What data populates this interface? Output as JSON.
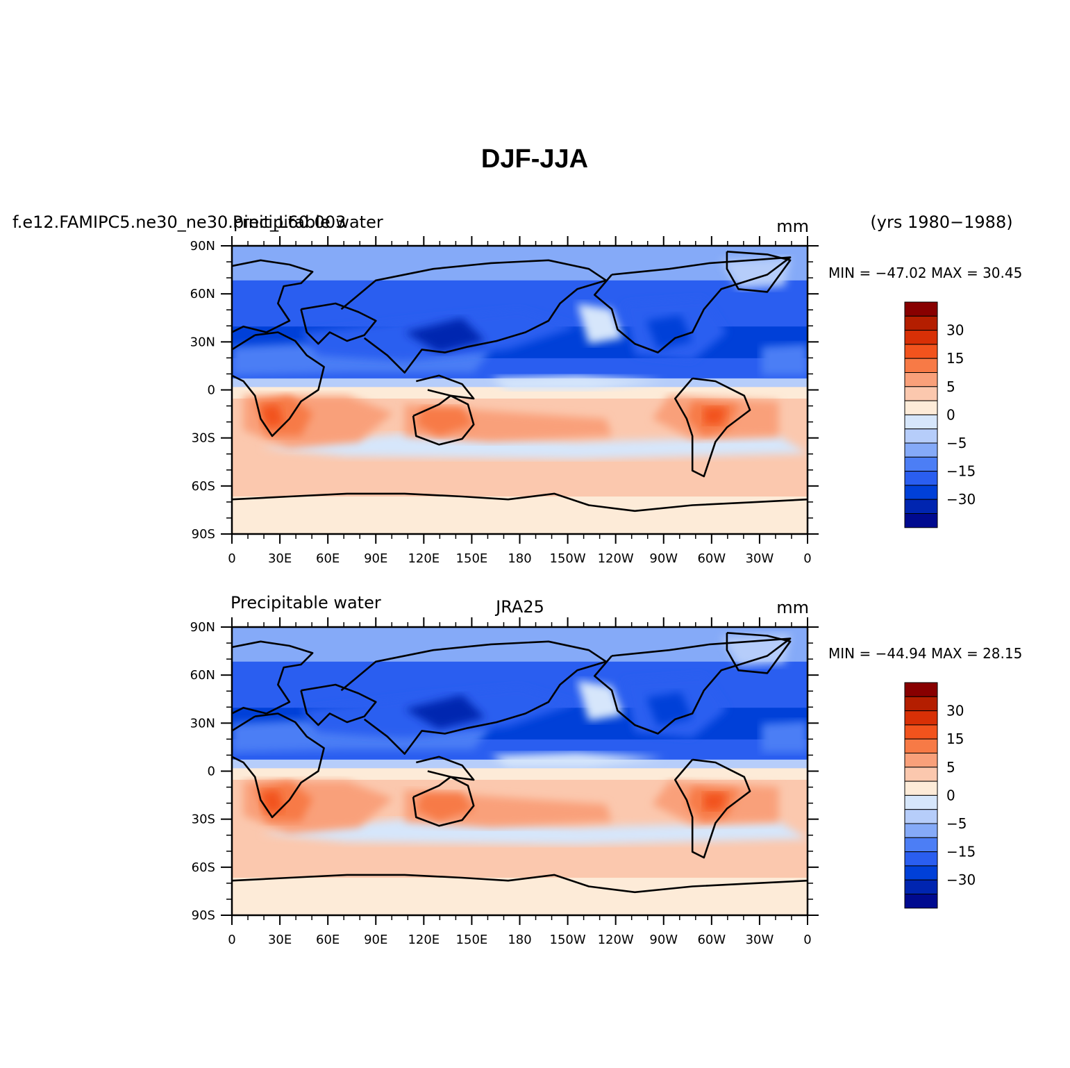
{
  "figure": {
    "title": "DJF-JJA",
    "years": "(yrs 1980−1988)"
  },
  "colors": {
    "scale": [
      "#000a8f",
      "#0025b0",
      "#0040d8",
      "#2a5ef0",
      "#4c7ef5",
      "#85aaf8",
      "#b6cdfa",
      "#d6e6fb",
      "#fdebd8",
      "#fbc8ae",
      "#f9a07a",
      "#f77a46",
      "#f2531d",
      "#d83006",
      "#b41e00",
      "#880000"
    ],
    "land_outline": "#000000"
  },
  "panels": [
    {
      "left_label": "f.e12.FAMIPC5.ne30_ne30.pinit_L60.003",
      "center_label": "Precipitable water",
      "units": "mm",
      "min_max": "MIN = −47.02  MAX =   30.45",
      "variant": "model"
    },
    {
      "left_label": "Precipitable water",
      "center_label": "JRA25",
      "units": "mm",
      "min_max": "MIN = −44.94  MAX =   28.15",
      "variant": "obs"
    }
  ],
  "axes": {
    "lat_ticks": [
      "90N",
      "60N",
      "30N",
      "0",
      "30S",
      "60S",
      "90S"
    ],
    "lon_ticks": [
      "0",
      "30E",
      "60E",
      "90E",
      "120E",
      "150E",
      "180",
      "150W",
      "120W",
      "90W",
      "60W",
      "30W",
      "0"
    ]
  },
  "colorbar": {
    "labels": [
      "30",
      "15",
      "5",
      "0",
      "−5",
      "−15",
      "−30"
    ]
  }
}
